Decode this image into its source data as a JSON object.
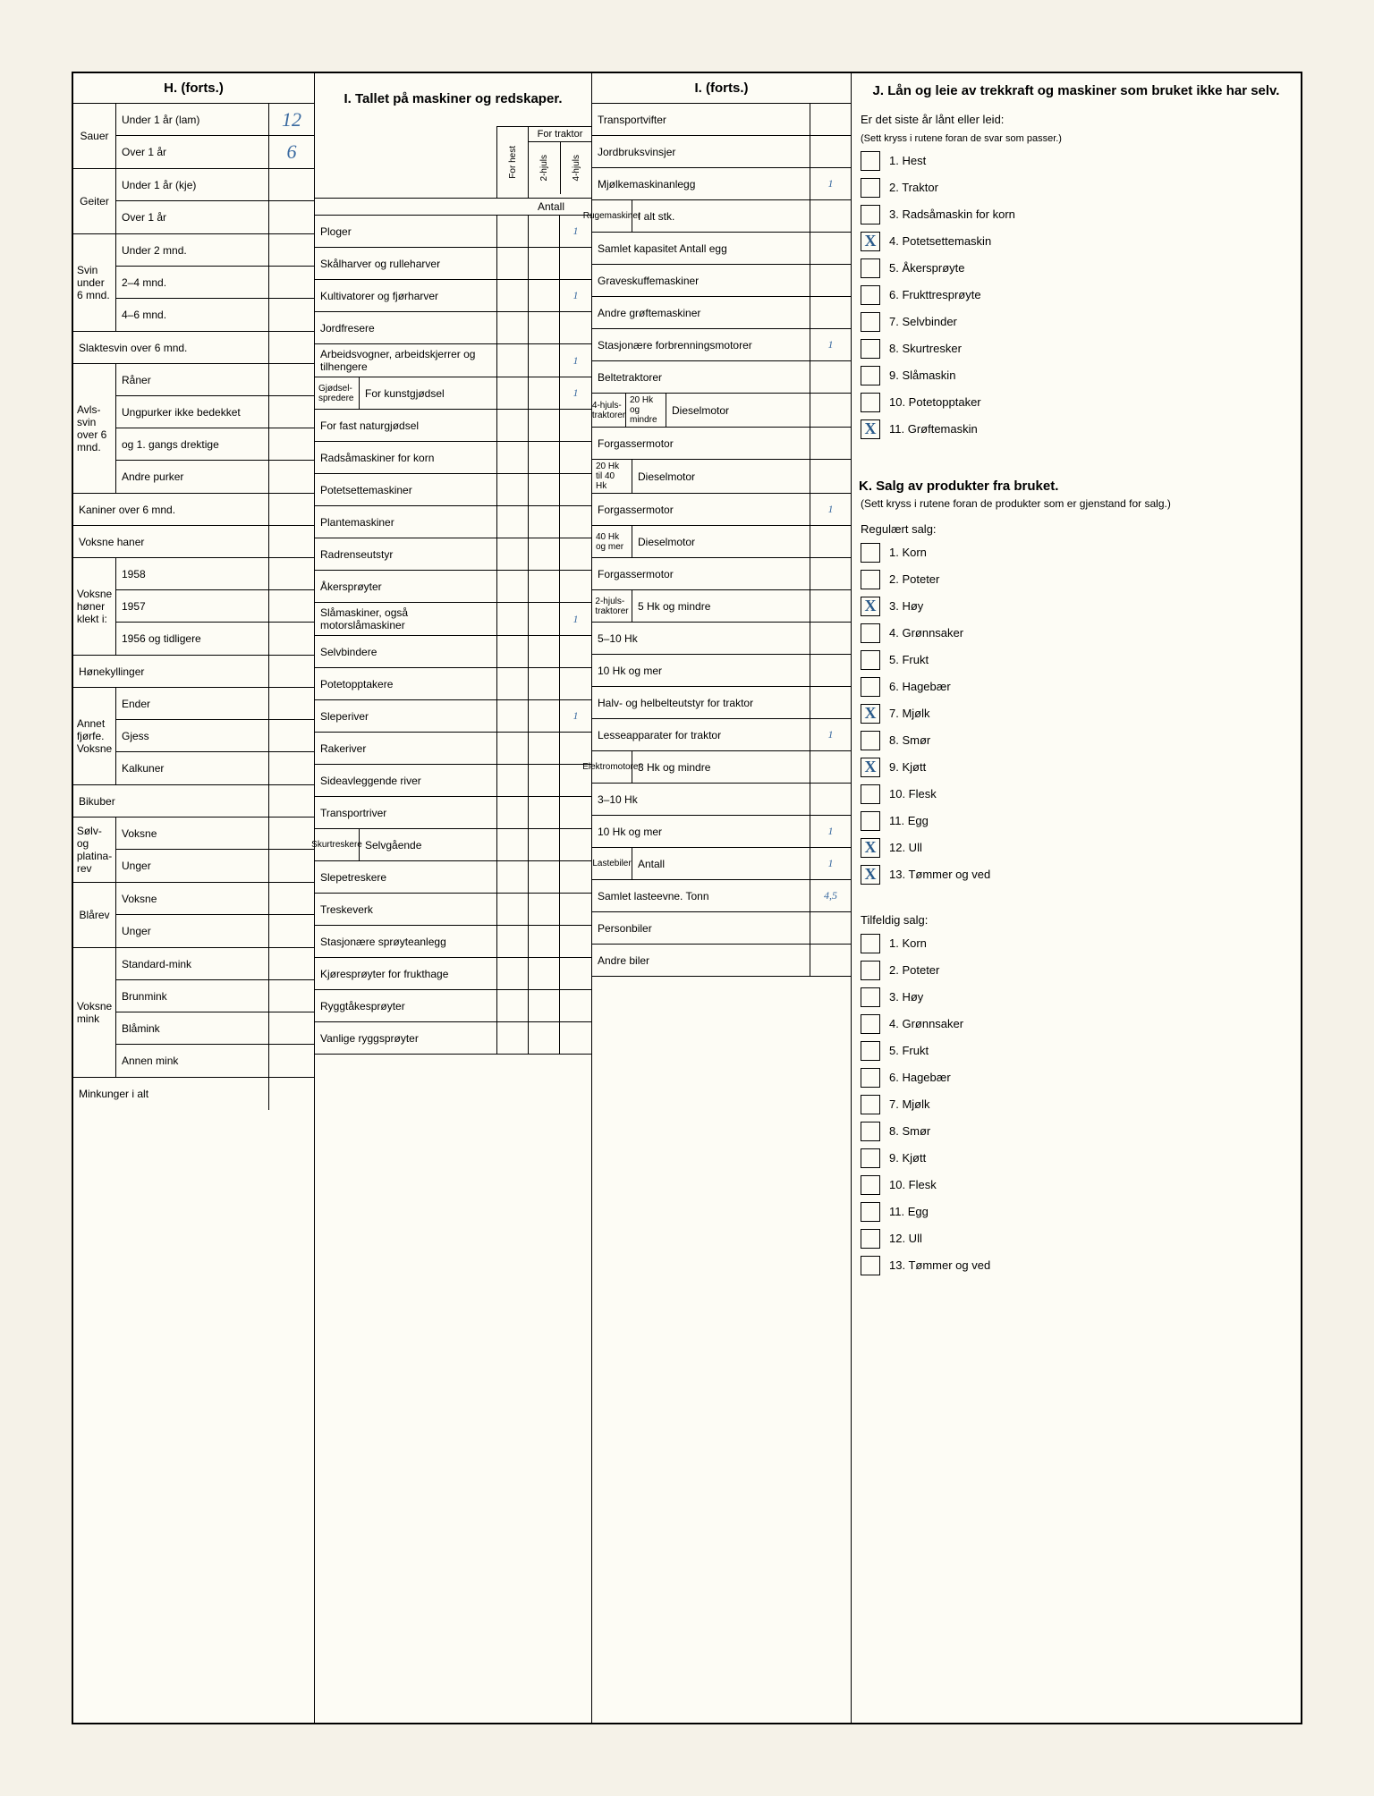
{
  "sections": {
    "H": {
      "title": "H. (forts.)",
      "groups": [
        {
          "side": "Sauer",
          "rows": [
            {
              "label": "Under 1 år (lam)",
              "value": "12"
            },
            {
              "label": "Over 1 år",
              "value": "6"
            }
          ]
        },
        {
          "side": "Geiter",
          "rows": [
            {
              "label": "Under 1 år (kje)",
              "value": ""
            },
            {
              "label": "Over 1 år",
              "value": ""
            }
          ]
        },
        {
          "side": "Svin under 6 mnd.",
          "rows": [
            {
              "label": "Under 2 mnd.",
              "value": ""
            },
            {
              "label": "2–4 mnd.",
              "value": ""
            },
            {
              "label": "4–6 mnd.",
              "value": ""
            }
          ]
        },
        {
          "side": "",
          "rows": [
            {
              "label": "Slaktesvin over 6 mnd.",
              "value": "",
              "full": true
            }
          ]
        },
        {
          "side": "Avls-svin over 6 mnd.",
          "rows": [
            {
              "label": "Råner",
              "value": ""
            },
            {
              "label": "Ungpurker ikke bedekket",
              "value": ""
            },
            {
              "label": "og 1. gangs drektige",
              "value": ""
            },
            {
              "label": "Andre purker",
              "value": ""
            }
          ]
        },
        {
          "side": "",
          "rows": [
            {
              "label": "Kaniner over 6 mnd.",
              "value": "",
              "full": true
            },
            {
              "label": "Voksne haner",
              "value": "",
              "full": true
            }
          ]
        },
        {
          "side": "Voksne høner klekt i:",
          "rows": [
            {
              "label": "1958",
              "value": ""
            },
            {
              "label": "1957",
              "value": ""
            },
            {
              "label": "1956 og tidligere",
              "value": ""
            }
          ]
        },
        {
          "side": "",
          "rows": [
            {
              "label": "Hønekyllinger",
              "value": "",
              "full": true
            }
          ]
        },
        {
          "side": "Annet fjørfe. Voksne",
          "rows": [
            {
              "label": "Ender",
              "value": ""
            },
            {
              "label": "Gjess",
              "value": ""
            },
            {
              "label": "Kalkuner",
              "value": ""
            }
          ]
        },
        {
          "side": "",
          "rows": [
            {
              "label": "Bikuber",
              "value": "",
              "full": true
            }
          ]
        },
        {
          "side": "Sølv- og platina-rev",
          "rows": [
            {
              "label": "Voksne",
              "value": ""
            },
            {
              "label": "Unger",
              "value": ""
            }
          ]
        },
        {
          "side": "Blårev",
          "rows": [
            {
              "label": "Voksne",
              "value": ""
            },
            {
              "label": "Unger",
              "value": ""
            }
          ]
        },
        {
          "side": "Voksne mink",
          "rows": [
            {
              "label": "Standard-mink",
              "value": ""
            },
            {
              "label": "Brunmink",
              "value": ""
            },
            {
              "label": "Blåmink",
              "value": ""
            },
            {
              "label": "Annen mink",
              "value": ""
            }
          ]
        },
        {
          "side": "",
          "rows": [
            {
              "label": "Minkunger i alt",
              "value": "",
              "full": true
            }
          ]
        }
      ]
    },
    "I": {
      "title": "I. Tallet på maskiner og redskaper.",
      "colheads": {
        "c1": "For hest",
        "c2": "2-hjuls",
        "c3": "4-hjuls",
        "label": "For traktor",
        "antall": "Antall"
      },
      "rows": [
        {
          "label": "Ploger",
          "v": "1"
        },
        {
          "label": "Skålharver og rulleharver",
          "v": ""
        },
        {
          "label": "Kultivatorer og fjørharver",
          "v": "1"
        },
        {
          "label": "Jordfresere",
          "v": ""
        },
        {
          "label": "Arbeidsvogner, arbeidskjerrer og tilhengere",
          "v": "1"
        },
        {
          "label": "For kunstgjødsel",
          "side": "Gjødsel-spredere",
          "v": "1"
        },
        {
          "label": "For fast naturgjødsel",
          "v": ""
        },
        {
          "label": "Radsåmaskiner for korn",
          "v": ""
        },
        {
          "label": "Potetsettemaskiner",
          "v": ""
        },
        {
          "label": "Plantemaskiner",
          "v": ""
        },
        {
          "label": "Radrenseutstyr",
          "v": ""
        },
        {
          "label": "Åkersprøyter",
          "v": ""
        },
        {
          "label": "Slåmaskiner, også motorslåmaskiner",
          "v": "1"
        },
        {
          "label": "Selvbindere",
          "v": ""
        },
        {
          "label": "Potetopptakere",
          "v": ""
        },
        {
          "label": "Sleperiver",
          "v": "1"
        },
        {
          "label": "Rakeriver",
          "v": ""
        },
        {
          "label": "Sideavleggende river",
          "v": ""
        },
        {
          "label": "Transportriver",
          "v": ""
        },
        {
          "label": "Selvgående",
          "side": "Skurtreskere",
          "v": ""
        },
        {
          "label": "Slepetreskere",
          "v": ""
        },
        {
          "label": "Treskeverk",
          "v": ""
        },
        {
          "label": "Stasjonære sprøyteanlegg",
          "v": ""
        },
        {
          "label": "Kjøresprøyter for frukthage",
          "v": ""
        },
        {
          "label": "Ryggtåkesprøyter",
          "v": ""
        },
        {
          "label": "Vanlige ryggsprøyter",
          "v": ""
        }
      ]
    },
    "I2": {
      "title": "I. (forts.)",
      "rows": [
        {
          "label": "Transportvifter",
          "v": ""
        },
        {
          "label": "Jordbruksvinsjer",
          "v": ""
        },
        {
          "label": "Mjølkemaskinanlegg",
          "v": "1"
        },
        {
          "label": "I alt stk.",
          "side": "Rugemaskiner",
          "v": ""
        },
        {
          "label": "Samlet kapasitet Antall egg",
          "v": ""
        },
        {
          "label": "Graveskuffemaskiner",
          "v": ""
        },
        {
          "label": "Andre grøftemaskiner",
          "v": ""
        },
        {
          "label": "Stasjonære forbrenningsmotorer",
          "v": "1"
        },
        {
          "label": "Beltetraktorer",
          "v": ""
        },
        {
          "label": "Dieselmotor",
          "side": "20 Hk og mindre",
          "group": "4-hjuls-traktorer",
          "v": ""
        },
        {
          "label": "Forgassermotor",
          "v": ""
        },
        {
          "label": "Dieselmotor",
          "side": "20 Hk til 40 Hk",
          "v": ""
        },
        {
          "label": "Forgassermotor",
          "v": "1"
        },
        {
          "label": "Dieselmotor",
          "side": "40 Hk og mer",
          "v": ""
        },
        {
          "label": "Forgassermotor",
          "v": ""
        },
        {
          "label": "5 Hk og mindre",
          "side": "2-hjuls-traktorer",
          "v": ""
        },
        {
          "label": "5–10 Hk",
          "v": ""
        },
        {
          "label": "10 Hk og mer",
          "v": ""
        },
        {
          "label": "Halv- og helbelteutstyr for traktor",
          "v": ""
        },
        {
          "label": "Lesseapparater for traktor",
          "v": "1"
        },
        {
          "label": "3 Hk og mindre",
          "side": "Elektromotorer",
          "v": ""
        },
        {
          "label": "3–10 Hk",
          "v": ""
        },
        {
          "label": "10 Hk og mer",
          "v": "1"
        },
        {
          "label": "Antall",
          "side": "Lastebiler",
          "v": "1"
        },
        {
          "label": "Samlet lasteevne. Tonn",
          "v": "4,5"
        },
        {
          "label": "Personbiler",
          "v": ""
        },
        {
          "label": "Andre biler",
          "v": ""
        }
      ]
    },
    "J": {
      "title": "J. Lån og leie av trekkraft og maskiner som bruket ikke har selv.",
      "subtitle": "Er det siste år lånt eller leid:",
      "note": "(Sett kryss i rutene foran de svar som passer.)",
      "items": [
        {
          "n": "1.",
          "label": "Hest",
          "x": ""
        },
        {
          "n": "2.",
          "label": "Traktor",
          "x": ""
        },
        {
          "n": "3.",
          "label": "Radsåmaskin for korn",
          "x": ""
        },
        {
          "n": "4.",
          "label": "Potetsettemaskin",
          "x": "X"
        },
        {
          "n": "5.",
          "label": "Åkersprøyte",
          "x": ""
        },
        {
          "n": "6.",
          "label": "Frukttresprøyte",
          "x": ""
        },
        {
          "n": "7.",
          "label": "Selvbinder",
          "x": ""
        },
        {
          "n": "8.",
          "label": "Skurtresker",
          "x": ""
        },
        {
          "n": "9.",
          "label": "Slåmaskin",
          "x": ""
        },
        {
          "n": "10.",
          "label": "Potetopptaker",
          "x": ""
        },
        {
          "n": "11.",
          "label": "Grøftemaskin",
          "x": "X"
        }
      ]
    },
    "K": {
      "title": "K. Salg av produkter fra bruket.",
      "note": "(Sett kryss i rutene foran de produkter som er gjenstand for salg.)",
      "reg": {
        "head": "Regulært salg:",
        "items": [
          {
            "n": "1.",
            "label": "Korn",
            "x": ""
          },
          {
            "n": "2.",
            "label": "Poteter",
            "x": ""
          },
          {
            "n": "3.",
            "label": "Høy",
            "x": "X"
          },
          {
            "n": "4.",
            "label": "Grønnsaker",
            "x": ""
          },
          {
            "n": "5.",
            "label": "Frukt",
            "x": ""
          },
          {
            "n": "6.",
            "label": "Hagebær",
            "x": ""
          },
          {
            "n": "7.",
            "label": "Mjølk",
            "x": "X"
          },
          {
            "n": "8.",
            "label": "Smør",
            "x": ""
          },
          {
            "n": "9.",
            "label": "Kjøtt",
            "x": "X"
          },
          {
            "n": "10.",
            "label": "Flesk",
            "x": ""
          },
          {
            "n": "11.",
            "label": "Egg",
            "x": ""
          },
          {
            "n": "12.",
            "label": "Ull",
            "x": "X"
          },
          {
            "n": "13.",
            "label": "Tømmer og ved",
            "x": "X"
          }
        ]
      },
      "tilf": {
        "head": "Tilfeldig salg:",
        "items": [
          {
            "n": "1.",
            "label": "Korn",
            "x": ""
          },
          {
            "n": "2.",
            "label": "Poteter",
            "x": ""
          },
          {
            "n": "3.",
            "label": "Høy",
            "x": ""
          },
          {
            "n": "4.",
            "label": "Grønnsaker",
            "x": ""
          },
          {
            "n": "5.",
            "label": "Frukt",
            "x": ""
          },
          {
            "n": "6.",
            "label": "Hagebær",
            "x": ""
          },
          {
            "n": "7.",
            "label": "Mjølk",
            "x": ""
          },
          {
            "n": "8.",
            "label": "Smør",
            "x": ""
          },
          {
            "n": "9.",
            "label": "Kjøtt",
            "x": ""
          },
          {
            "n": "10.",
            "label": "Flesk",
            "x": ""
          },
          {
            "n": "11.",
            "label": "Egg",
            "x": ""
          },
          {
            "n": "12.",
            "label": "Ull",
            "x": ""
          },
          {
            "n": "13.",
            "label": "Tømmer og ved",
            "x": ""
          }
        ]
      }
    }
  }
}
